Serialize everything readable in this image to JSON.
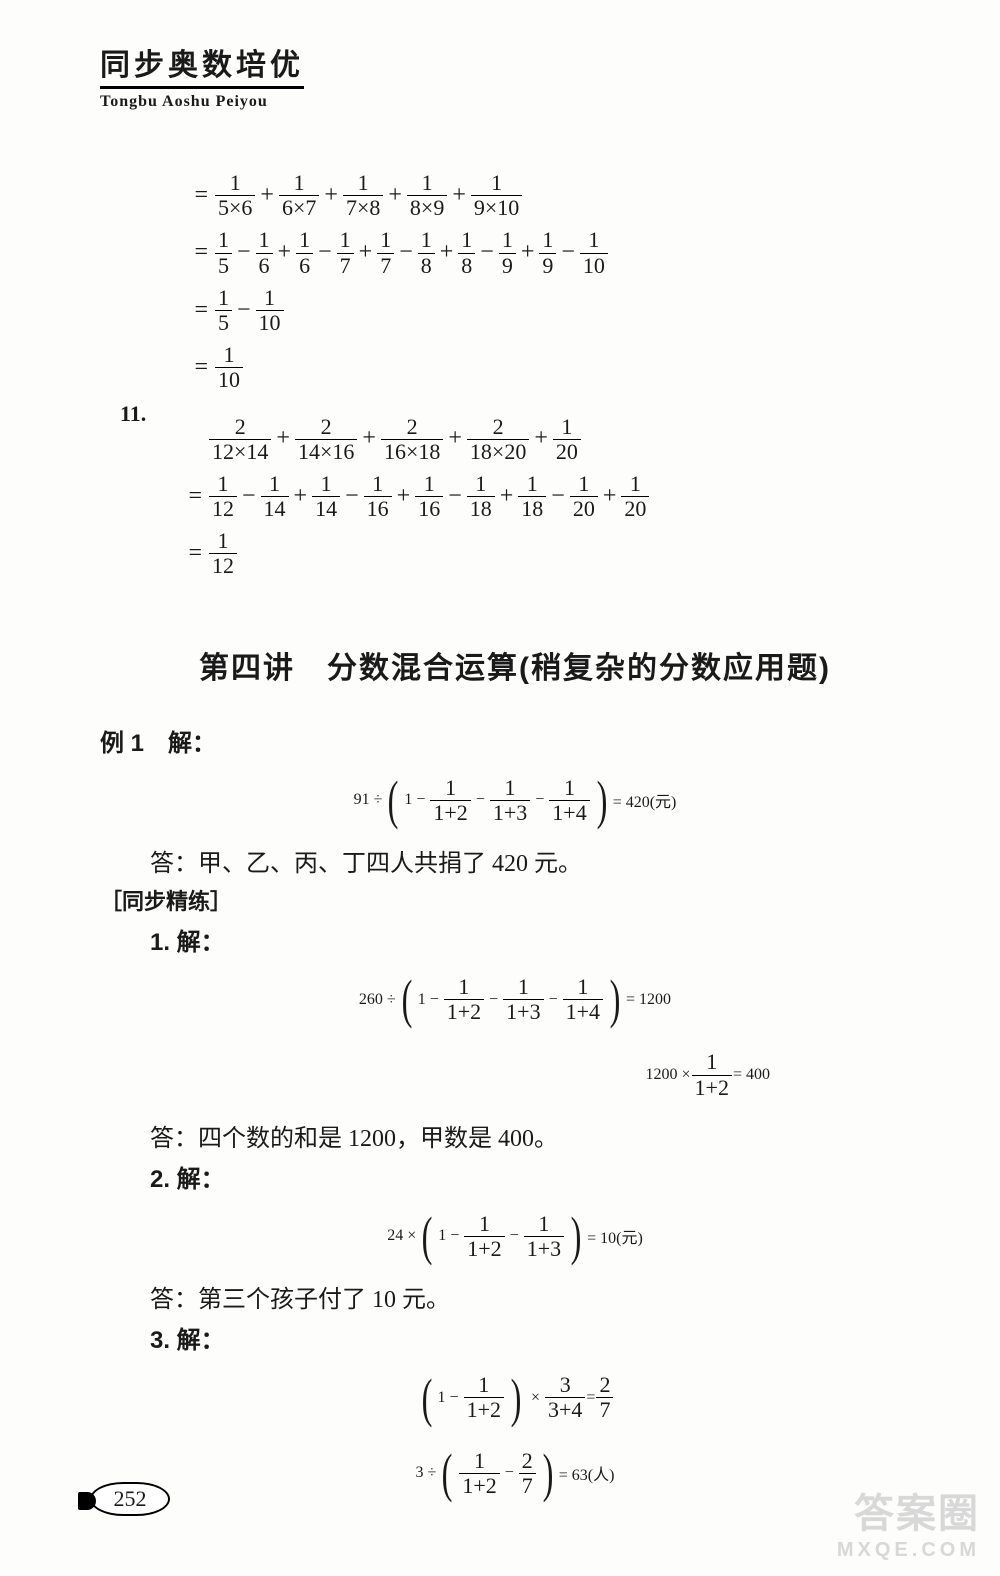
{
  "header": {
    "title": "同步奥数培优",
    "pinyin": "Tongbu Aoshu Peiyou"
  },
  "block10": {
    "l1": {
      "f1n": "1",
      "f1d": "5×6",
      "f2n": "1",
      "f2d": "6×7",
      "f3n": "1",
      "f3d": "7×8",
      "f4n": "1",
      "f4d": "8×9",
      "f5n": "1",
      "f5d": "9×10"
    },
    "l2": {
      "a1": "1",
      "a2": "5",
      "b1": "1",
      "b2": "6",
      "c1": "1",
      "c2": "6",
      "d1": "1",
      "d2": "7",
      "e1": "1",
      "e2": "7",
      "f1": "1",
      "f2": "8",
      "g1": "1",
      "g2": "8",
      "h1": "1",
      "h2": "9",
      "i1": "1",
      "i2": "9",
      "j1": "1",
      "j2": "10"
    },
    "l3": {
      "an": "1",
      "ad": "5",
      "bn": "1",
      "bd": "10"
    },
    "l4": {
      "n": "1",
      "d": "10"
    }
  },
  "q11": {
    "num": "11.",
    "l1": {
      "a": "2",
      "ad": "12×14",
      "b": "2",
      "bd": "14×16",
      "c": "2",
      "cd": "16×18",
      "d": "2",
      "dd": "18×20",
      "e": "1",
      "ed": "20"
    },
    "l2": {
      "a": "1",
      "ad": "12",
      "b": "1",
      "bd": "14",
      "c": "1",
      "cd": "14",
      "d": "1",
      "dd": "16",
      "e": "1",
      "ed": "16",
      "f": "1",
      "fd": "18",
      "g": "1",
      "gd": "18",
      "h": "1",
      "hd": "20",
      "i": "1",
      "id": "20"
    },
    "l3": {
      "n": "1",
      "d": "12"
    }
  },
  "section": {
    "title": "第四讲　分数混合运算(稍复杂的分数应用题)"
  },
  "ex1": {
    "label": "例 1　解：",
    "eq": {
      "lead": "91 ÷",
      "one": "1",
      "f1n": "1",
      "f1d": "1+2",
      "f2n": "1",
      "f2d": "1+3",
      "f3n": "1",
      "f3d": "1+4",
      "res": "= 420(元)"
    },
    "ans": "答：甲、乙、丙、丁四人共捐了 420 元。"
  },
  "sync": {
    "label": "［同步精练］"
  },
  "p1": {
    "label": "1. 解：",
    "eq1": {
      "lead": "260 ÷",
      "one": "1",
      "f1n": "1",
      "f1d": "1+2",
      "f2n": "1",
      "f2d": "1+3",
      "f3n": "1",
      "f3d": "1+4",
      "res": " = 1200"
    },
    "eq2": {
      "lead": "1200 ×",
      "fn": "1",
      "fd": "1+2",
      "res": " = 400"
    },
    "ans": "答：四个数的和是 1200，甲数是 400。"
  },
  "p2": {
    "label": "2. 解：",
    "eq": {
      "lead": "24 ×",
      "one": "1",
      "f1n": "1",
      "f1d": "1+2",
      "f2n": "1",
      "f2d": "1+3",
      "res": "= 10(元)"
    },
    "ans": "答：第三个孩子付了 10 元。"
  },
  "p3": {
    "label": "3. 解：",
    "eq1": {
      "one": "1",
      "f1n": "1",
      "f1d": "1+2",
      "mul": "×",
      "f2n": "3",
      "f2d": "3+4",
      "res": " = ",
      "rn": "2",
      "rd": "7"
    },
    "eq2": {
      "lead": "3 ÷",
      "f1n": "1",
      "f1d": "1+2",
      "minus": "−",
      "f2n": "2",
      "f2d": "7",
      "res": " = 63(人)"
    }
  },
  "pagenum": "252",
  "wm": {
    "big": "答案圈",
    "small": "MXQE.COM"
  }
}
